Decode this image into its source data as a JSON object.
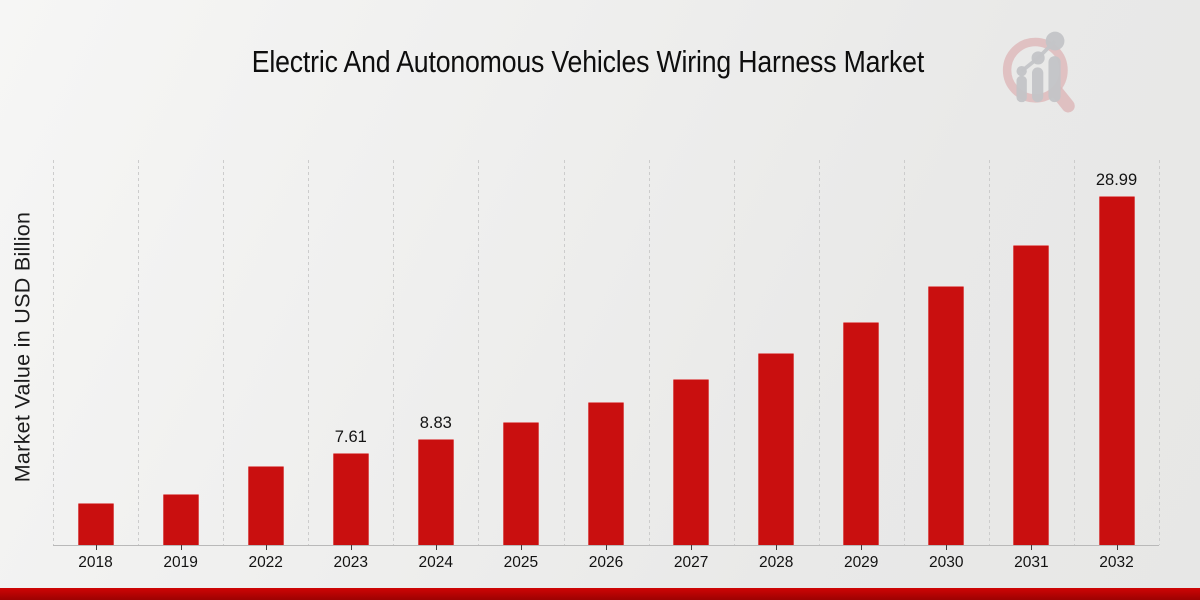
{
  "page": {
    "logo": "magnifier-bar-chart-logo"
  },
  "colors": {
    "bar": "#c90f0f",
    "accent_stripe": "#cf0505",
    "logo_ring_pink": "#ddb6b8",
    "logo_gray": "#c4c5c8",
    "background_light": "#f6f6f5",
    "background_dark": "#e7e7e6"
  },
  "chart_data": {
    "type": "bar",
    "title": "Electric And Autonomous Vehicles Wiring Harness Market",
    "xlabel": "",
    "ylabel": "Market Value in USD Billion",
    "categories": [
      "2018",
      "2019",
      "2022",
      "2023",
      "2024",
      "2025",
      "2026",
      "2027",
      "2028",
      "2029",
      "2030",
      "2031",
      "2032"
    ],
    "values": [
      3.49,
      4.21,
      6.56,
      7.61,
      8.83,
      10.24,
      11.88,
      13.78,
      15.99,
      18.55,
      21.52,
      24.96,
      28.99
    ],
    "bar_labels": [
      "",
      "",
      "",
      "7.61",
      "8.83",
      "",
      "",
      "",
      "",
      "",
      "",
      "",
      "28.99"
    ],
    "ylim": [
      0,
      32
    ],
    "grid": "vertical-dashed",
    "legend": "none",
    "bar_color": "#c90f0f"
  }
}
